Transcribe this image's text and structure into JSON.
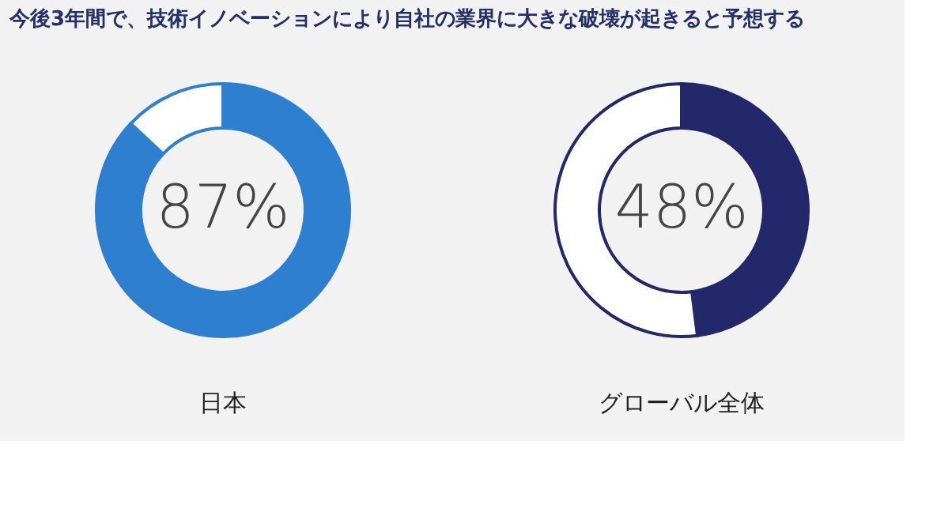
{
  "chart_data": [
    {
      "type": "donut",
      "title": "今後3年間で、技術イノベーションにより自社の業界に大きな破壊が起きると予想する",
      "categories": [
        null,
        null
      ],
      "values": [
        87,
        13
      ],
      "colors": [
        "#2f7fd0",
        "#ffffff"
      ],
      "annotations": [
        "87%"
      ],
      "xlabel": "日本"
    },
    {
      "type": "donut",
      "categories": [
        null,
        null
      ],
      "values": [
        48,
        52
      ],
      "colors": [
        "#22286a",
        "#ffffff"
      ],
      "annotations": [
        "48%"
      ],
      "xlabel": "グローバル全体"
    }
  ]
}
